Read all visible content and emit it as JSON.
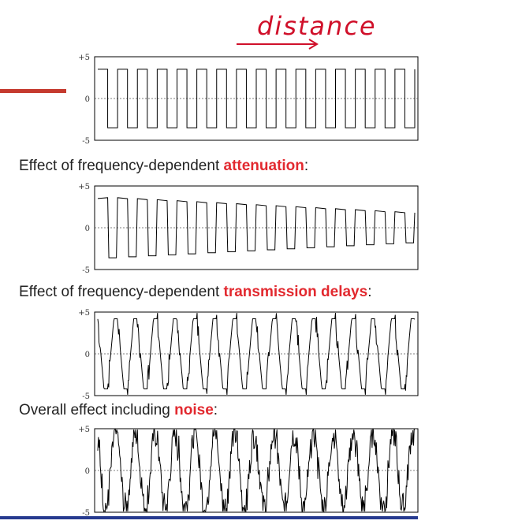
{
  "annotation": {
    "text": "distance"
  },
  "colors": {
    "highlight": "#e2292f",
    "annotation": "#d0102a",
    "accent_bar": "#c53a2e",
    "footer_line": "#263a8f"
  },
  "captions": [
    {
      "prefix": "Effect of frequency-dependent ",
      "highlight": "attenuation",
      "suffix": ":"
    },
    {
      "prefix": "Effect of frequency-dependent ",
      "highlight": "transmission delays",
      "suffix": ":"
    },
    {
      "prefix": "Overall effect including ",
      "highlight": "noise",
      "suffix": ":"
    }
  ],
  "chart_data": [
    {
      "type": "line",
      "variant": "clean",
      "y_ticks": [
        "+5",
        "0",
        "-5"
      ],
      "ylim": [
        -5,
        5
      ],
      "grid_zero_line": true,
      "periods": 16
    },
    {
      "type": "line",
      "variant": "attenuated",
      "y_ticks": [
        "+5",
        "0",
        "-5"
      ],
      "ylim": [
        -5,
        5
      ],
      "grid_zero_line": true,
      "periods": 16
    },
    {
      "type": "line",
      "variant": "delayed",
      "y_ticks": [
        "+5",
        "0",
        "-5"
      ],
      "ylim": [
        -5,
        5
      ],
      "grid_zero_line": true,
      "periods": 16
    },
    {
      "type": "line",
      "variant": "noisy",
      "y_ticks": [
        "+5",
        "0",
        "-5"
      ],
      "ylim": [
        -5,
        5
      ],
      "grid_zero_line": true,
      "periods": 16
    }
  ]
}
